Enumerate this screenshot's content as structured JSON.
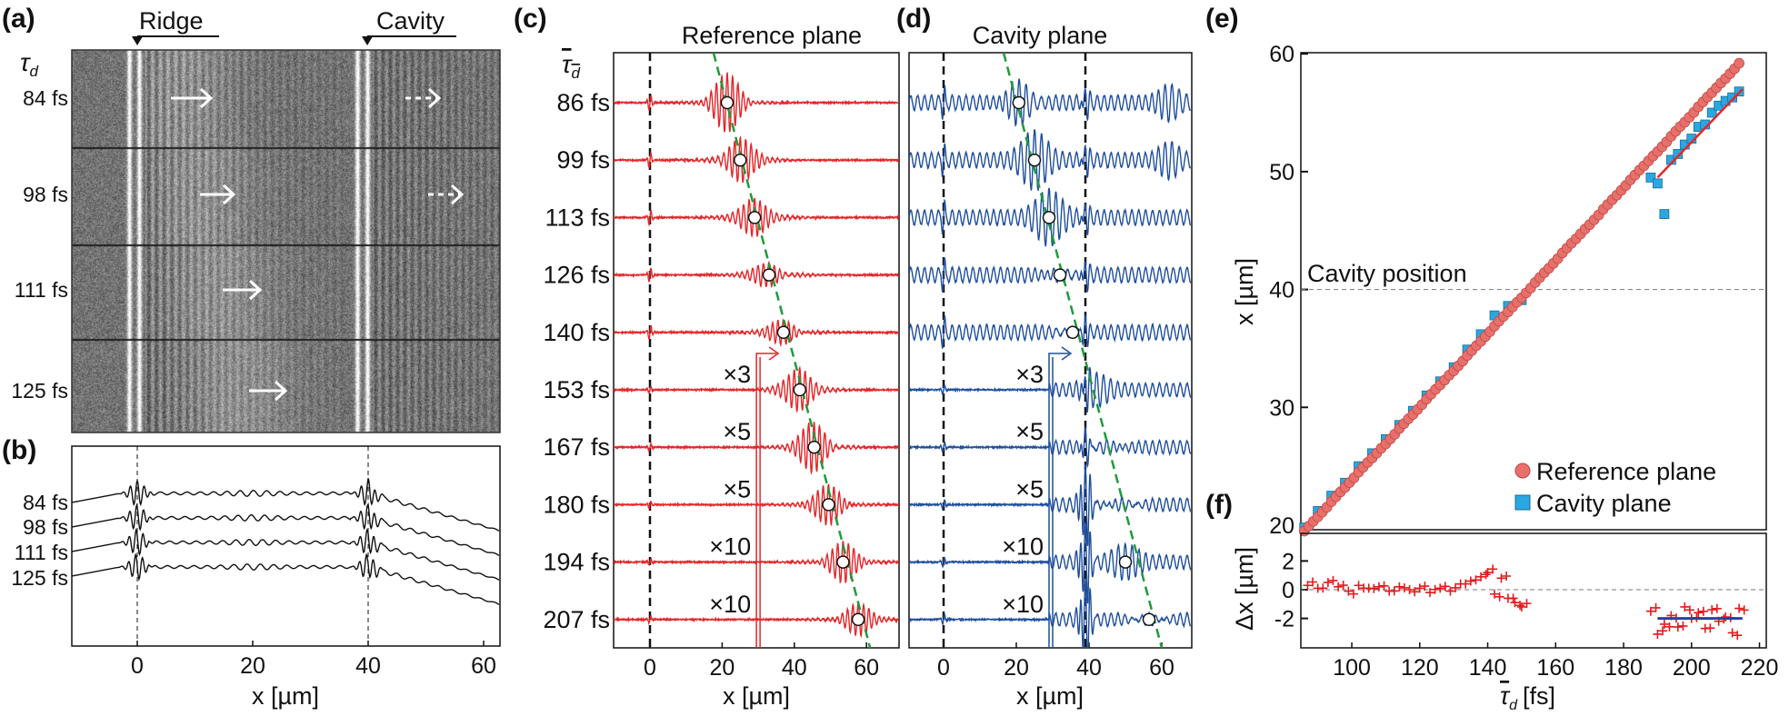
{
  "colors": {
    "reference": "#e3262a",
    "cavity": "#1f4e9c",
    "fit_guide": "#1f9a3a",
    "reference_marker": "#e8706a",
    "cavity_marker": "#2aa7df",
    "delta_marker": "#e41a1c",
    "mean_line": "#2b3fa0"
  },
  "chart_data": [
    {
      "panel": "(a)",
      "type": "heatmap",
      "markers": [
        "Ridge",
        "Cavity"
      ],
      "tau_symbol": "τ",
      "tau_subscript": "d",
      "row_labels": [
        "84 fs",
        "98 fs",
        "111 fs",
        "125 fs"
      ],
      "cavity_arrow_dashed_rows": [
        0,
        1
      ]
    },
    {
      "panel": "(b)",
      "type": "line",
      "series_labels": [
        "84 fs",
        "98 fs",
        "111 fs",
        "125 fs"
      ],
      "xlim": [
        -11,
        63
      ],
      "xticks": [
        0,
        20,
        40,
        60
      ],
      "xlabel": "x [µm]",
      "marker_lines_x": [
        0,
        40
      ]
    },
    {
      "panel": "(c)",
      "type": "line",
      "title": "Reference plane",
      "tau_symbol": "τ",
      "tau_subscript": "d",
      "row_labels": [
        "86 fs",
        "99 fs",
        "113 fs",
        "126 fs",
        "140 fs",
        "153 fs",
        "167 fs",
        "180 fs",
        "194 fs",
        "207 fs"
      ],
      "multipliers": [
        "",
        "",
        "",
        "",
        "",
        "×3",
        "×5",
        "×5",
        "×10",
        "×10"
      ],
      "peak_x": [
        21.4,
        25.0,
        29.0,
        33.0,
        37.0,
        41.5,
        45.5,
        49.5,
        53.5,
        57.7
      ],
      "xlim": [
        -10,
        69
      ],
      "xticks": [
        0,
        20,
        40,
        60
      ],
      "xlabel": "x [µm]",
      "reference_lines_x": [
        0
      ],
      "gain_switch_x": 29.5,
      "guide_line_x": [
        17.6,
        61
      ]
    },
    {
      "panel": "(d)",
      "type": "line",
      "title": "Cavity plane",
      "row_labels": [
        "86 fs",
        "99 fs",
        "113 fs",
        "126 fs",
        "140 fs",
        "153 fs",
        "167 fs",
        "180 fs",
        "194 fs",
        "207 fs"
      ],
      "multipliers": [
        "",
        "",
        "",
        "",
        "",
        "×3",
        "×5",
        "×5",
        "×10",
        "×10"
      ],
      "peak_x": [
        20.7,
        25.0,
        29.0,
        32.0,
        35.5,
        null,
        null,
        null,
        50.0,
        56.5
      ],
      "xlim": [
        -9.5,
        68
      ],
      "xticks": [
        0,
        20,
        40,
        60
      ],
      "xlabel": "x [µm]",
      "reference_lines_x": [
        0,
        39
      ],
      "gain_switch_x": 29,
      "guide_line_x": [
        16.5,
        60
      ]
    },
    {
      "panel": "(e)",
      "type": "scatter",
      "xlim": [
        85,
        222
      ],
      "ylim": [
        19.5,
        60
      ],
      "yticks": [
        20,
        30,
        40,
        50,
        60
      ],
      "ylabel": "x [µm]",
      "hline": {
        "y": 40,
        "label": "Cavity position"
      },
      "legend": "bottom-right",
      "series": [
        {
          "name": "Reference plane",
          "marker": "circle",
          "x": [
            86,
            90,
            94,
            98,
            102,
            106,
            110,
            114,
            118,
            122,
            126,
            130,
            134,
            138,
            142,
            146,
            150,
            154,
            158,
            162,
            166,
            170,
            174,
            178,
            182,
            186,
            190,
            194,
            198,
            202,
            206,
            210,
            214
          ],
          "y": [
            19.5,
            20.7,
            22.0,
            23.2,
            24.5,
            25.7,
            26.9,
            28.2,
            29.4,
            30.7,
            31.9,
            33.1,
            34.4,
            35.6,
            36.9,
            38.1,
            39.3,
            40.6,
            41.8,
            43.1,
            44.3,
            45.5,
            46.8,
            48.0,
            49.3,
            50.5,
            51.7,
            53.0,
            54.2,
            55.5,
            56.7,
            57.9,
            59.2
          ]
        },
        {
          "name": "Cavity plane",
          "marker": "square",
          "x": [
            86,
            90,
            94,
            98,
            102,
            106,
            110,
            114,
            118,
            122,
            126,
            130,
            134,
            138,
            142,
            146,
            150,
            188,
            190,
            192,
            194,
            196,
            198,
            200,
            202,
            204,
            206,
            208,
            210,
            212,
            214
          ],
          "y": [
            19.8,
            21.2,
            22.5,
            23.6,
            25.0,
            26.1,
            27.3,
            28.5,
            29.7,
            31.0,
            32.2,
            33.4,
            34.9,
            36.2,
            37.8,
            38.6,
            39.1,
            49.5,
            49.0,
            46.4,
            51.0,
            51.5,
            52.3,
            52.8,
            53.8,
            54.0,
            55.0,
            55.6,
            56.0,
            56.3,
            56.8
          ]
        }
      ],
      "fit_line": {
        "x": [
          190,
          215
        ],
        "y": [
          49.5,
          57.0
        ]
      }
    },
    {
      "panel": "(f)",
      "type": "scatter",
      "xlim": [
        85,
        222
      ],
      "xticks": [
        100,
        120,
        140,
        160,
        180,
        200,
        220
      ],
      "xlabel_symbol": "τ",
      "xlabel_subscript": "d",
      "xlabel_unit": "[fs]",
      "ylim": [
        -4,
        3.9
      ],
      "yticks": [
        -2,
        0,
        2
      ],
      "ylabel": "Δx [µm]",
      "hline": {
        "y": 0
      },
      "series": [
        {
          "marker": "plus",
          "x": [
            87,
            90,
            93,
            96,
            99,
            102,
            105,
            108,
            111,
            114,
            117,
            120,
            123,
            126,
            129,
            132,
            135,
            138,
            140,
            142,
            144,
            146,
            148,
            150,
            188,
            190,
            192,
            194,
            196,
            198,
            200,
            202,
            204,
            206,
            208,
            210,
            212,
            214
          ],
          "y": [
            0.3,
            0.1,
            0.5,
            0.2,
            -0.1,
            0.3,
            0.1,
            0.2,
            -0.1,
            0.2,
            0.0,
            0.1,
            -0.2,
            0.1,
            -0.1,
            0.4,
            0.6,
            0.9,
            1.2,
            -0.3,
            0.8,
            -0.6,
            -0.9,
            -1.2,
            -1.5,
            -3.1,
            -2.4,
            -1.8,
            -2.6,
            -1.2,
            -2.0,
            -1.6,
            -2.7,
            -1.4,
            -2.2,
            -1.9,
            -3.0,
            -1.3
          ]
        }
      ],
      "mean_line": {
        "x": [
          190,
          215
        ],
        "y": [
          -2,
          -2
        ]
      }
    }
  ]
}
